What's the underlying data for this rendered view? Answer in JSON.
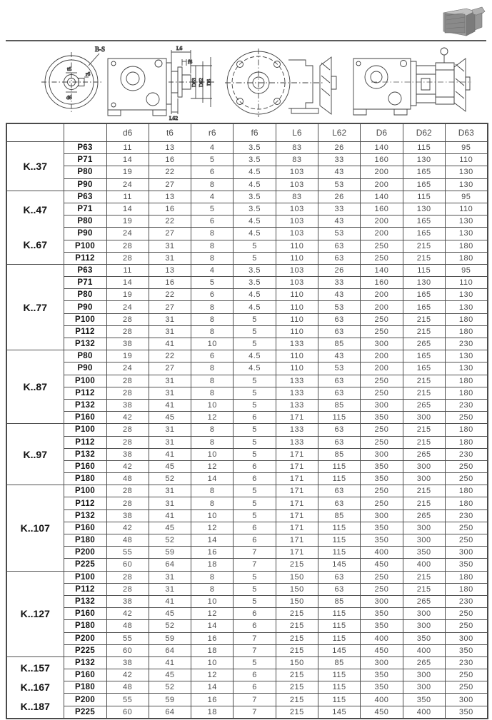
{
  "colors": {
    "ink": "#3f3f3f",
    "table_border": "#4a4a4a",
    "value_text": "#4d4d4d",
    "label_text": "#111111"
  },
  "photo": {
    "alt_name": "gear-unit-product-photo"
  },
  "drawings": {
    "end_view": {
      "view_label": "B-S",
      "dim_top": "t6",
      "dim_right": "r6",
      "dim_bottom": "d6"
    },
    "shaft_side_view": {
      "dim_length": "L6",
      "dim_flange": "f6",
      "dim_d63": "D63",
      "dim_d62": "D62",
      "dim_d6": "D6",
      "dim_l62": "L62"
    }
  },
  "table": {
    "headers": [
      "d6",
      "t6",
      "r6",
      "f6",
      "L6",
      "L62",
      "D6",
      "D62",
      "D63"
    ],
    "groups": [
      {
        "labels": [
          "K..37"
        ],
        "rows": [
          {
            "p": "P63",
            "values": [
              "11",
              "13",
              "4",
              "3.5",
              "83",
              "26",
              "140",
              "115",
              "95"
            ]
          },
          {
            "p": "P71",
            "values": [
              "14",
              "16",
              "5",
              "3.5",
              "83",
              "33",
              "160",
              "130",
              "110"
            ]
          },
          {
            "p": "P80",
            "values": [
              "19",
              "22",
              "6",
              "4.5",
              "103",
              "43",
              "200",
              "165",
              "130"
            ]
          },
          {
            "p": "P90",
            "values": [
              "24",
              "27",
              "8",
              "4.5",
              "103",
              "53",
              "200",
              "165",
              "130"
            ]
          }
        ]
      },
      {
        "labels": [
          "K..47",
          "K..67"
        ],
        "rows": [
          {
            "p": "P63",
            "values": [
              "11",
              "13",
              "4",
              "3.5",
              "83",
              "26",
              "140",
              "115",
              "95"
            ]
          },
          {
            "p": "P71",
            "values": [
              "14",
              "16",
              "5",
              "3.5",
              "103",
              "33",
              "160",
              "130",
              "110"
            ]
          },
          {
            "p": "P80",
            "values": [
              "19",
              "22",
              "6",
              "4.5",
              "103",
              "43",
              "200",
              "165",
              "130"
            ]
          },
          {
            "p": "P90",
            "values": [
              "24",
              "27",
              "8",
              "4.5",
              "103",
              "53",
              "200",
              "165",
              "130"
            ]
          },
          {
            "p": "P100",
            "values": [
              "28",
              "31",
              "8",
              "5",
              "110",
              "63",
              "250",
              "215",
              "180"
            ]
          },
          {
            "p": "P112",
            "values": [
              "28",
              "31",
              "8",
              "5",
              "110",
              "63",
              "250",
              "215",
              "180"
            ]
          }
        ]
      },
      {
        "labels": [
          "K..77"
        ],
        "rows": [
          {
            "p": "P63",
            "values": [
              "11",
              "13",
              "4",
              "3.5",
              "103",
              "26",
              "140",
              "115",
              "95"
            ]
          },
          {
            "p": "P71",
            "values": [
              "14",
              "16",
              "5",
              "3.5",
              "103",
              "33",
              "160",
              "130",
              "110"
            ]
          },
          {
            "p": "P80",
            "values": [
              "19",
              "22",
              "6",
              "4.5",
              "110",
              "43",
              "200",
              "165",
              "130"
            ]
          },
          {
            "p": "P90",
            "values": [
              "24",
              "27",
              "8",
              "4.5",
              "110",
              "53",
              "200",
              "165",
              "130"
            ]
          },
          {
            "p": "P100",
            "values": [
              "28",
              "31",
              "8",
              "5",
              "110",
              "63",
              "250",
              "215",
              "180"
            ]
          },
          {
            "p": "P112",
            "values": [
              "28",
              "31",
              "8",
              "5",
              "110",
              "63",
              "250",
              "215",
              "180"
            ]
          },
          {
            "p": "P132",
            "values": [
              "38",
              "41",
              "10",
              "5",
              "133",
              "85",
              "300",
              "265",
              "230"
            ]
          }
        ]
      },
      {
        "labels": [
          "K..87"
        ],
        "rows": [
          {
            "p": "P80",
            "values": [
              "19",
              "22",
              "6",
              "4.5",
              "110",
              "43",
              "200",
              "165",
              "130"
            ]
          },
          {
            "p": "P90",
            "values": [
              "24",
              "27",
              "8",
              "4.5",
              "110",
              "53",
              "200",
              "165",
              "130"
            ]
          },
          {
            "p": "P100",
            "values": [
              "28",
              "31",
              "8",
              "5",
              "133",
              "63",
              "250",
              "215",
              "180"
            ]
          },
          {
            "p": "P112",
            "values": [
              "28",
              "31",
              "8",
              "5",
              "133",
              "63",
              "250",
              "215",
              "180"
            ]
          },
          {
            "p": "P132",
            "values": [
              "38",
              "41",
              "10",
              "5",
              "133",
              "85",
              "300",
              "265",
              "230"
            ]
          },
          {
            "p": "P160",
            "values": [
              "42",
              "45",
              "12",
              "6",
              "171",
              "115",
              "350",
              "300",
              "250"
            ]
          }
        ]
      },
      {
        "labels": [
          "K..97"
        ],
        "rows": [
          {
            "p": "P100",
            "values": [
              "28",
              "31",
              "8",
              "5",
              "133",
              "63",
              "250",
              "215",
              "180"
            ]
          },
          {
            "p": "P112",
            "values": [
              "28",
              "31",
              "8",
              "5",
              "133",
              "63",
              "250",
              "215",
              "180"
            ]
          },
          {
            "p": "P132",
            "values": [
              "38",
              "41",
              "10",
              "5",
              "171",
              "85",
              "300",
              "265",
              "230"
            ]
          },
          {
            "p": "P160",
            "values": [
              "42",
              "45",
              "12",
              "6",
              "171",
              "115",
              "350",
              "300",
              "250"
            ]
          },
          {
            "p": "P180",
            "values": [
              "48",
              "52",
              "14",
              "6",
              "171",
              "115",
              "350",
              "300",
              "250"
            ]
          }
        ]
      },
      {
        "labels": [
          "K..107"
        ],
        "rows": [
          {
            "p": "P100",
            "values": [
              "28",
              "31",
              "8",
              "5",
              "171",
              "63",
              "250",
              "215",
              "180"
            ]
          },
          {
            "p": "P112",
            "values": [
              "28",
              "31",
              "8",
              "5",
              "171",
              "63",
              "250",
              "215",
              "180"
            ]
          },
          {
            "p": "P132",
            "values": [
              "38",
              "41",
              "10",
              "5",
              "171",
              "85",
              "300",
              "265",
              "230"
            ]
          },
          {
            "p": "P160",
            "values": [
              "42",
              "45",
              "12",
              "6",
              "171",
              "115",
              "350",
              "300",
              "250"
            ]
          },
          {
            "p": "P180",
            "values": [
              "48",
              "52",
              "14",
              "6",
              "171",
              "115",
              "350",
              "300",
              "250"
            ]
          },
          {
            "p": "P200",
            "values": [
              "55",
              "59",
              "16",
              "7",
              "171",
              "115",
              "400",
              "350",
              "300"
            ]
          },
          {
            "p": "P225",
            "values": [
              "60",
              "64",
              "18",
              "7",
              "215",
              "145",
              "450",
              "400",
              "350"
            ]
          }
        ]
      },
      {
        "labels": [
          "K..127"
        ],
        "rows": [
          {
            "p": "P100",
            "values": [
              "28",
              "31",
              "8",
              "5",
              "150",
              "63",
              "250",
              "215",
              "180"
            ]
          },
          {
            "p": "P112",
            "values": [
              "28",
              "31",
              "8",
              "5",
              "150",
              "63",
              "250",
              "215",
              "180"
            ]
          },
          {
            "p": "P132",
            "values": [
              "38",
              "41",
              "10",
              "5",
              "150",
              "85",
              "300",
              "265",
              "230"
            ]
          },
          {
            "p": "P160",
            "values": [
              "42",
              "45",
              "12",
              "6",
              "215",
              "115",
              "350",
              "300",
              "250"
            ]
          },
          {
            "p": "P180",
            "values": [
              "48",
              "52",
              "14",
              "6",
              "215",
              "115",
              "350",
              "300",
              "250"
            ]
          },
          {
            "p": "P200",
            "values": [
              "55",
              "59",
              "16",
              "7",
              "215",
              "115",
              "400",
              "350",
              "300"
            ]
          },
          {
            "p": "P225",
            "values": [
              "60",
              "64",
              "18",
              "7",
              "215",
              "145",
              "450",
              "400",
              "350"
            ]
          }
        ]
      },
      {
        "labels": [
          "K..157",
          "K..167",
          "K..187"
        ],
        "rows": [
          {
            "p": "P132",
            "values": [
              "38",
              "41",
              "10",
              "5",
              "150",
              "85",
              "300",
              "265",
              "230"
            ]
          },
          {
            "p": "P160",
            "values": [
              "42",
              "45",
              "12",
              "6",
              "215",
              "115",
              "350",
              "300",
              "250"
            ]
          },
          {
            "p": "P180",
            "values": [
              "48",
              "52",
              "14",
              "6",
              "215",
              "115",
              "350",
              "300",
              "250"
            ]
          },
          {
            "p": "P200",
            "values": [
              "55",
              "59",
              "16",
              "7",
              "215",
              "115",
              "400",
              "350",
              "300"
            ]
          },
          {
            "p": "P225",
            "values": [
              "60",
              "64",
              "18",
              "7",
              "215",
              "145",
              "450",
              "400",
              "350"
            ]
          }
        ]
      }
    ]
  }
}
